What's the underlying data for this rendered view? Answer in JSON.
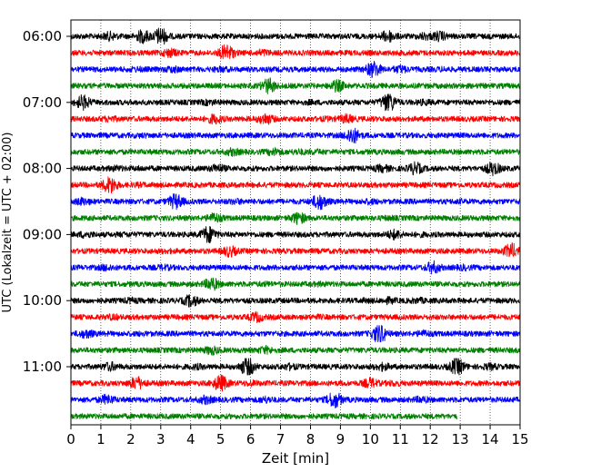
{
  "chart_data": {
    "type": "line",
    "title": "",
    "xlabel": "Zeit  [min]",
    "ylabel": "UTC (Lokalzeit = UTC + 02:00)",
    "xlim": [
      0,
      15
    ],
    "x_ticks": [
      0,
      1,
      2,
      3,
      4,
      5,
      6,
      7,
      8,
      9,
      10,
      11,
      12,
      13,
      14,
      15
    ],
    "x_tick_labels": [
      "0",
      "1",
      "2",
      "3",
      "4",
      "5",
      "6",
      "7",
      "8",
      "9",
      "10",
      "11",
      "12",
      "13",
      "14",
      "15"
    ],
    "y_tick_labels": [
      "06:00",
      "07:00",
      "08:00",
      "09:00",
      "10:00",
      "11:00"
    ],
    "vertical_grid": "dotted",
    "colors_cycle": [
      "#000000",
      "#ff0000",
      "#0000ff",
      "#008000"
    ],
    "traces_per_hour": 4,
    "minutes_per_trace": 15,
    "last_trace_end_min": 12.9,
    "series": [
      {
        "start": "06:00",
        "color": "#000000",
        "bursts": [
          [
            0.3,
            1.1
          ],
          [
            1.3,
            2.0
          ],
          [
            2.4,
            2.8
          ],
          [
            3.0,
            3.6
          ],
          [
            10.6,
            2.6
          ],
          [
            11.8,
            1.7
          ],
          [
            12.3,
            2.2
          ]
        ]
      },
      {
        "start": "06:15",
        "color": "#ff0000",
        "bursts": [
          [
            3.3,
            2.0
          ],
          [
            5.2,
            3.6
          ],
          [
            6.4,
            1.6
          ],
          [
            11.5,
            1.0
          ],
          [
            14.0,
            0.8
          ]
        ]
      },
      {
        "start": "06:30",
        "color": "#0000ff",
        "bursts": [
          [
            2.2,
            1.3
          ],
          [
            3.4,
            1.6
          ],
          [
            5.0,
            1.4
          ],
          [
            10.1,
            3.5
          ],
          [
            11.0,
            1.8
          ],
          [
            12.4,
            1.2
          ],
          [
            14.1,
            1.0
          ]
        ]
      },
      {
        "start": "06:45",
        "color": "#008000",
        "bursts": [
          [
            5.2,
            0.9
          ],
          [
            6.6,
            3.2
          ],
          [
            8.9,
            2.5
          ],
          [
            12.0,
            1.0
          ],
          [
            13.7,
            1.0
          ]
        ]
      },
      {
        "start": "07:00",
        "color": "#000000",
        "bursts": [
          [
            0.4,
            3.0
          ],
          [
            4.6,
            1.4
          ],
          [
            8.0,
            1.2
          ],
          [
            10.6,
            4.2
          ],
          [
            11.8,
            1.4
          ]
        ]
      },
      {
        "start": "07:15",
        "color": "#ff0000",
        "bursts": [
          [
            1.3,
            1.4
          ],
          [
            4.8,
            2.2
          ],
          [
            6.5,
            2.5
          ],
          [
            8.5,
            1.2
          ],
          [
            9.2,
            2.0
          ],
          [
            13.1,
            1.0
          ]
        ]
      },
      {
        "start": "07:30",
        "color": "#0000ff",
        "bursts": [
          [
            2.4,
            1.2
          ],
          [
            9.4,
            3.4
          ],
          [
            11.3,
            1.0
          ]
        ]
      },
      {
        "start": "07:45",
        "color": "#008000",
        "bursts": [
          [
            5.4,
            1.8
          ],
          [
            6.8,
            1.8
          ],
          [
            7.6,
            1.4
          ],
          [
            8.2,
            1.3
          ]
        ]
      },
      {
        "start": "08:00",
        "color": "#000000",
        "bursts": [
          [
            1.5,
            1.4
          ],
          [
            2.3,
            1.2
          ],
          [
            4.9,
            2.0
          ],
          [
            10.4,
            1.8
          ],
          [
            11.5,
            2.6
          ],
          [
            14.1,
            2.8
          ]
        ]
      },
      {
        "start": "08:15",
        "color": "#ff0000",
        "bursts": [
          [
            1.3,
            3.6
          ],
          [
            2.3,
            1.2
          ],
          [
            9.0,
            1.0
          ],
          [
            12.7,
            1.0
          ]
        ]
      },
      {
        "start": "08:30",
        "color": "#0000ff",
        "bursts": [
          [
            0.4,
            1.8
          ],
          [
            3.5,
            3.2
          ],
          [
            5.5,
            1.4
          ],
          [
            8.3,
            3.4
          ],
          [
            10.0,
            1.4
          ],
          [
            13.0,
            1.2
          ]
        ]
      },
      {
        "start": "08:45",
        "color": "#008000",
        "bursts": [
          [
            4.8,
            2.2
          ],
          [
            7.6,
            2.6
          ],
          [
            10.6,
            1.2
          ]
        ]
      },
      {
        "start": "09:00",
        "color": "#000000",
        "bursts": [
          [
            0.5,
            1.6
          ],
          [
            1.8,
            1.2
          ],
          [
            4.6,
            3.6
          ],
          [
            10.8,
            2.2
          ],
          [
            11.7,
            1.2
          ]
        ]
      },
      {
        "start": "09:15",
        "color": "#ff0000",
        "bursts": [
          [
            3.2,
            1.2
          ],
          [
            5.3,
            2.4
          ],
          [
            14.7,
            3.2
          ]
        ]
      },
      {
        "start": "09:30",
        "color": "#0000ff",
        "bursts": [
          [
            1.2,
            1.6
          ],
          [
            3.1,
            1.4
          ],
          [
            12.1,
            2.6
          ],
          [
            13.1,
            1.4
          ]
        ]
      },
      {
        "start": "09:45",
        "color": "#008000",
        "bursts": [
          [
            4.7,
            2.8
          ],
          [
            6.5,
            1.2
          ],
          [
            8.3,
            1.2
          ]
        ]
      },
      {
        "start": "10:00",
        "color": "#000000",
        "bursts": [
          [
            2.0,
            1.4
          ],
          [
            4.0,
            2.6
          ],
          [
            9.8,
            1.2
          ],
          [
            10.6,
            1.6
          ],
          [
            11.6,
            1.4
          ]
        ]
      },
      {
        "start": "10:15",
        "color": "#ff0000",
        "bursts": [
          [
            1.4,
            1.4
          ],
          [
            6.2,
            2.2
          ],
          [
            8.3,
            1.2
          ]
        ]
      },
      {
        "start": "10:30",
        "color": "#0000ff",
        "bursts": [
          [
            0.5,
            2.0
          ],
          [
            2.4,
            1.2
          ],
          [
            10.3,
            4.2
          ],
          [
            11.8,
            1.6
          ]
        ]
      },
      {
        "start": "10:45",
        "color": "#008000",
        "bursts": [
          [
            1.4,
            1.0
          ],
          [
            4.7,
            2.0
          ],
          [
            6.5,
            1.8
          ],
          [
            8.4,
            1.0
          ]
        ]
      },
      {
        "start": "11:00",
        "color": "#000000",
        "bursts": [
          [
            1.3,
            2.0
          ],
          [
            4.2,
            1.4
          ],
          [
            5.9,
            4.0
          ],
          [
            7.3,
            1.6
          ],
          [
            10.4,
            1.8
          ],
          [
            12.9,
            3.6
          ],
          [
            14.0,
            1.6
          ]
        ]
      },
      {
        "start": "11:15",
        "color": "#ff0000",
        "bursts": [
          [
            2.2,
            2.8
          ],
          [
            5.0,
            3.4
          ],
          [
            6.0,
            1.4
          ],
          [
            10.0,
            2.2
          ],
          [
            10.8,
            1.4
          ]
        ]
      },
      {
        "start": "11:30",
        "color": "#0000ff",
        "bursts": [
          [
            1.2,
            2.2
          ],
          [
            4.5,
            2.0
          ],
          [
            6.5,
            1.6
          ],
          [
            8.8,
            3.4
          ],
          [
            11.7,
            1.6
          ]
        ]
      },
      {
        "start": "11:45",
        "color": "#008000",
        "bursts": [
          [
            3.0,
            1.0
          ],
          [
            6.2,
            1.0
          ],
          [
            9.2,
            1.0
          ],
          [
            10.8,
            0.9
          ]
        ]
      }
    ]
  }
}
